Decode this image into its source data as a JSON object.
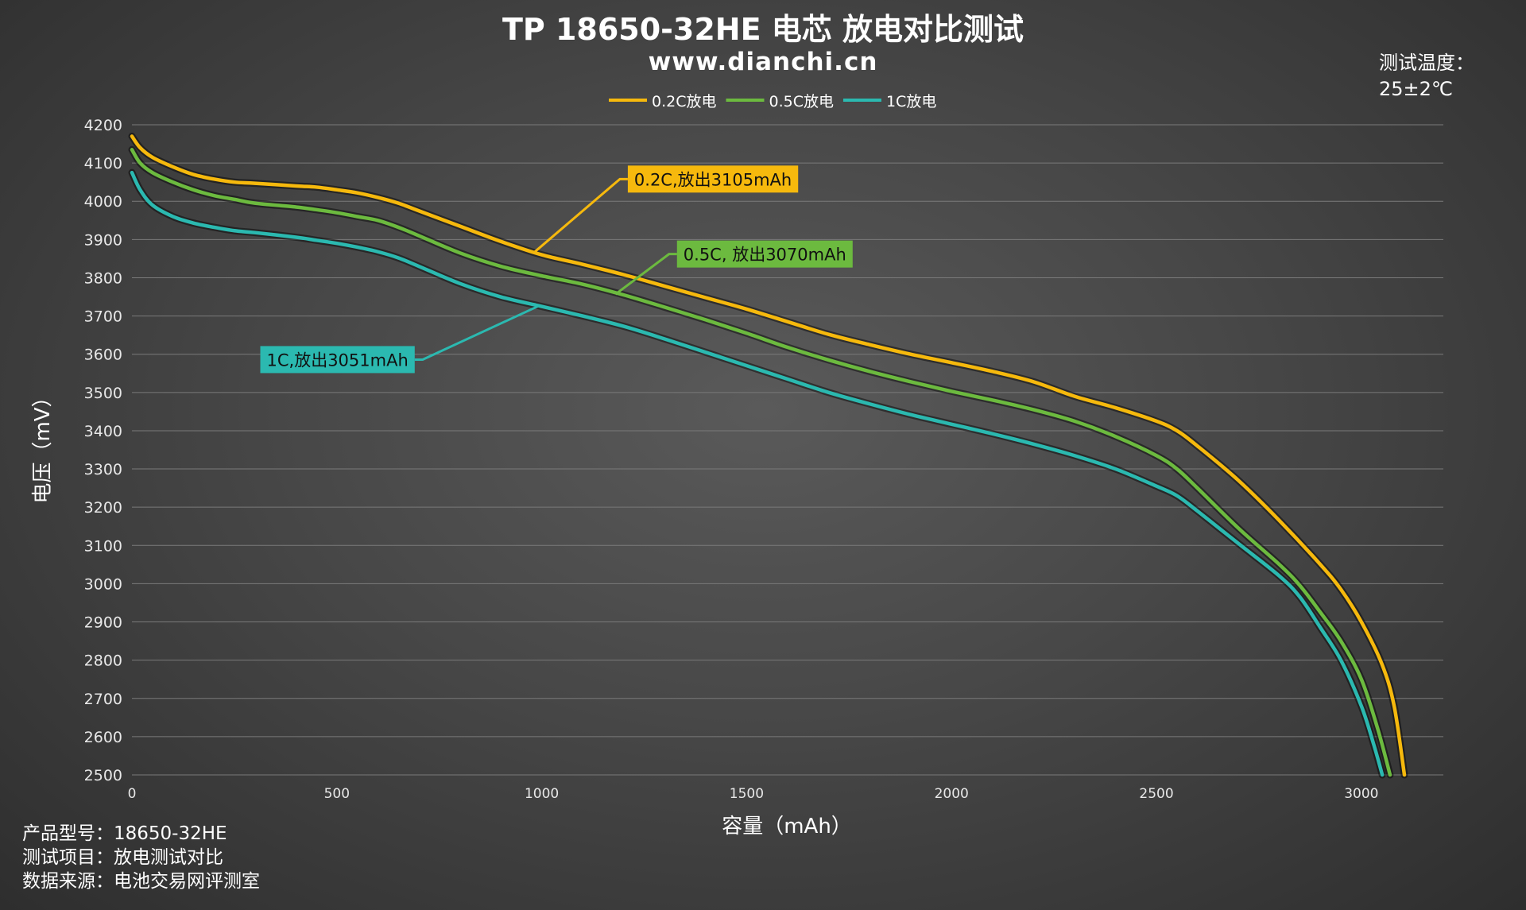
{
  "chart_data": {
    "type": "line",
    "title": "TP 18650-32HE 电芯 放电对比测试",
    "subtitle": "www.dianchi.cn",
    "xlabel": "容量（mAh）",
    "ylabel": "电压（mV）",
    "xlim": [
      0,
      3200
    ],
    "ylim": [
      2500,
      4200
    ],
    "xticks": [
      0,
      500,
      1000,
      1500,
      2000,
      2500,
      3000
    ],
    "yticks": [
      2500,
      2600,
      2700,
      2800,
      2900,
      3000,
      3100,
      3200,
      3300,
      3400,
      3500,
      3600,
      3700,
      3800,
      3900,
      4000,
      4100,
      4200
    ],
    "grid": true,
    "legend_position": "top-center",
    "series": [
      {
        "name": "0.2C放电",
        "color": "#f6b90d",
        "points": [
          [
            0,
            4170
          ],
          [
            20,
            4140
          ],
          [
            50,
            4115
          ],
          [
            100,
            4090
          ],
          [
            150,
            4070
          ],
          [
            200,
            4058
          ],
          [
            250,
            4050
          ],
          [
            300,
            4047
          ],
          [
            400,
            4040
          ],
          [
            450,
            4037
          ],
          [
            500,
            4030
          ],
          [
            550,
            4022
          ],
          [
            600,
            4010
          ],
          [
            650,
            3995
          ],
          [
            700,
            3975
          ],
          [
            800,
            3935
          ],
          [
            900,
            3895
          ],
          [
            1000,
            3860
          ],
          [
            1100,
            3835
          ],
          [
            1200,
            3808
          ],
          [
            1300,
            3778
          ],
          [
            1400,
            3748
          ],
          [
            1500,
            3718
          ],
          [
            1600,
            3685
          ],
          [
            1700,
            3652
          ],
          [
            1800,
            3625
          ],
          [
            1900,
            3600
          ],
          [
            2000,
            3578
          ],
          [
            2100,
            3555
          ],
          [
            2200,
            3528
          ],
          [
            2300,
            3490
          ],
          [
            2400,
            3460
          ],
          [
            2500,
            3425
          ],
          [
            2550,
            3400
          ],
          [
            2600,
            3360
          ],
          [
            2700,
            3270
          ],
          [
            2800,
            3165
          ],
          [
            2900,
            3050
          ],
          [
            2950,
            2985
          ],
          [
            3000,
            2900
          ],
          [
            3050,
            2790
          ],
          [
            3080,
            2680
          ],
          [
            3105,
            2500
          ]
        ]
      },
      {
        "name": "0.5C放电",
        "color": "#6cba3f",
        "points": [
          [
            0,
            4135
          ],
          [
            20,
            4100
          ],
          [
            50,
            4075
          ],
          [
            100,
            4050
          ],
          [
            150,
            4030
          ],
          [
            200,
            4015
          ],
          [
            250,
            4005
          ],
          [
            300,
            3995
          ],
          [
            400,
            3985
          ],
          [
            450,
            3978
          ],
          [
            500,
            3970
          ],
          [
            550,
            3960
          ],
          [
            600,
            3950
          ],
          [
            650,
            3932
          ],
          [
            700,
            3910
          ],
          [
            800,
            3865
          ],
          [
            900,
            3830
          ],
          [
            1000,
            3805
          ],
          [
            1100,
            3783
          ],
          [
            1200,
            3755
          ],
          [
            1300,
            3723
          ],
          [
            1400,
            3690
          ],
          [
            1500,
            3655
          ],
          [
            1600,
            3618
          ],
          [
            1700,
            3585
          ],
          [
            1800,
            3555
          ],
          [
            1900,
            3528
          ],
          [
            2000,
            3503
          ],
          [
            2100,
            3480
          ],
          [
            2200,
            3455
          ],
          [
            2300,
            3425
          ],
          [
            2400,
            3385
          ],
          [
            2500,
            3335
          ],
          [
            2550,
            3300
          ],
          [
            2600,
            3250
          ],
          [
            2700,
            3145
          ],
          [
            2800,
            3050
          ],
          [
            2850,
            2995
          ],
          [
            2900,
            2925
          ],
          [
            2950,
            2850
          ],
          [
            3000,
            2750
          ],
          [
            3040,
            2620
          ],
          [
            3070,
            2500
          ]
        ]
      },
      {
        "name": "1C放电",
        "color": "#2bb9b0",
        "points": [
          [
            0,
            4075
          ],
          [
            20,
            4030
          ],
          [
            50,
            3990
          ],
          [
            100,
            3960
          ],
          [
            150,
            3943
          ],
          [
            200,
            3932
          ],
          [
            250,
            3923
          ],
          [
            300,
            3918
          ],
          [
            400,
            3906
          ],
          [
            450,
            3898
          ],
          [
            500,
            3890
          ],
          [
            550,
            3880
          ],
          [
            600,
            3868
          ],
          [
            650,
            3852
          ],
          [
            700,
            3830
          ],
          [
            800,
            3785
          ],
          [
            900,
            3750
          ],
          [
            1000,
            3725
          ],
          [
            1100,
            3700
          ],
          [
            1200,
            3673
          ],
          [
            1300,
            3640
          ],
          [
            1400,
            3605
          ],
          [
            1500,
            3570
          ],
          [
            1600,
            3535
          ],
          [
            1700,
            3500
          ],
          [
            1800,
            3470
          ],
          [
            1900,
            3442
          ],
          [
            2000,
            3417
          ],
          [
            2100,
            3392
          ],
          [
            2200,
            3365
          ],
          [
            2300,
            3335
          ],
          [
            2400,
            3300
          ],
          [
            2500,
            3255
          ],
          [
            2550,
            3230
          ],
          [
            2600,
            3190
          ],
          [
            2700,
            3105
          ],
          [
            2800,
            3020
          ],
          [
            2850,
            2965
          ],
          [
            2900,
            2885
          ],
          [
            2950,
            2800
          ],
          [
            3000,
            2680
          ],
          [
            3030,
            2580
          ],
          [
            3051,
            2500
          ]
        ]
      }
    ],
    "annotations": [
      {
        "text": "0.2C,放出3105mAh",
        "series": 0,
        "at": [
          980,
          3865
        ],
        "box_at": [
          1210,
          4058
        ],
        "bg": "#f6b90d",
        "fg": "#111111"
      },
      {
        "text": "0.5C, 放出3070mAh",
        "series": 1,
        "at": [
          1180,
          3757
        ],
        "box_at": [
          1330,
          3862
        ],
        "bg": "#6cba3f",
        "fg": "#111111"
      },
      {
        "text": "1C,放出3051mAh",
        "series": 2,
        "at": [
          990,
          3725
        ],
        "box_at": [
          690,
          3586
        ],
        "bg": "#2bb9b0",
        "fg": "#111111"
      }
    ]
  },
  "test_temperature": {
    "label": "测试温度：",
    "value": "25±2℃"
  },
  "footer": [
    "产品型号：18650-32HE",
    "测试项目：放电测试对比",
    "数据来源：电池交易网评测室"
  ]
}
